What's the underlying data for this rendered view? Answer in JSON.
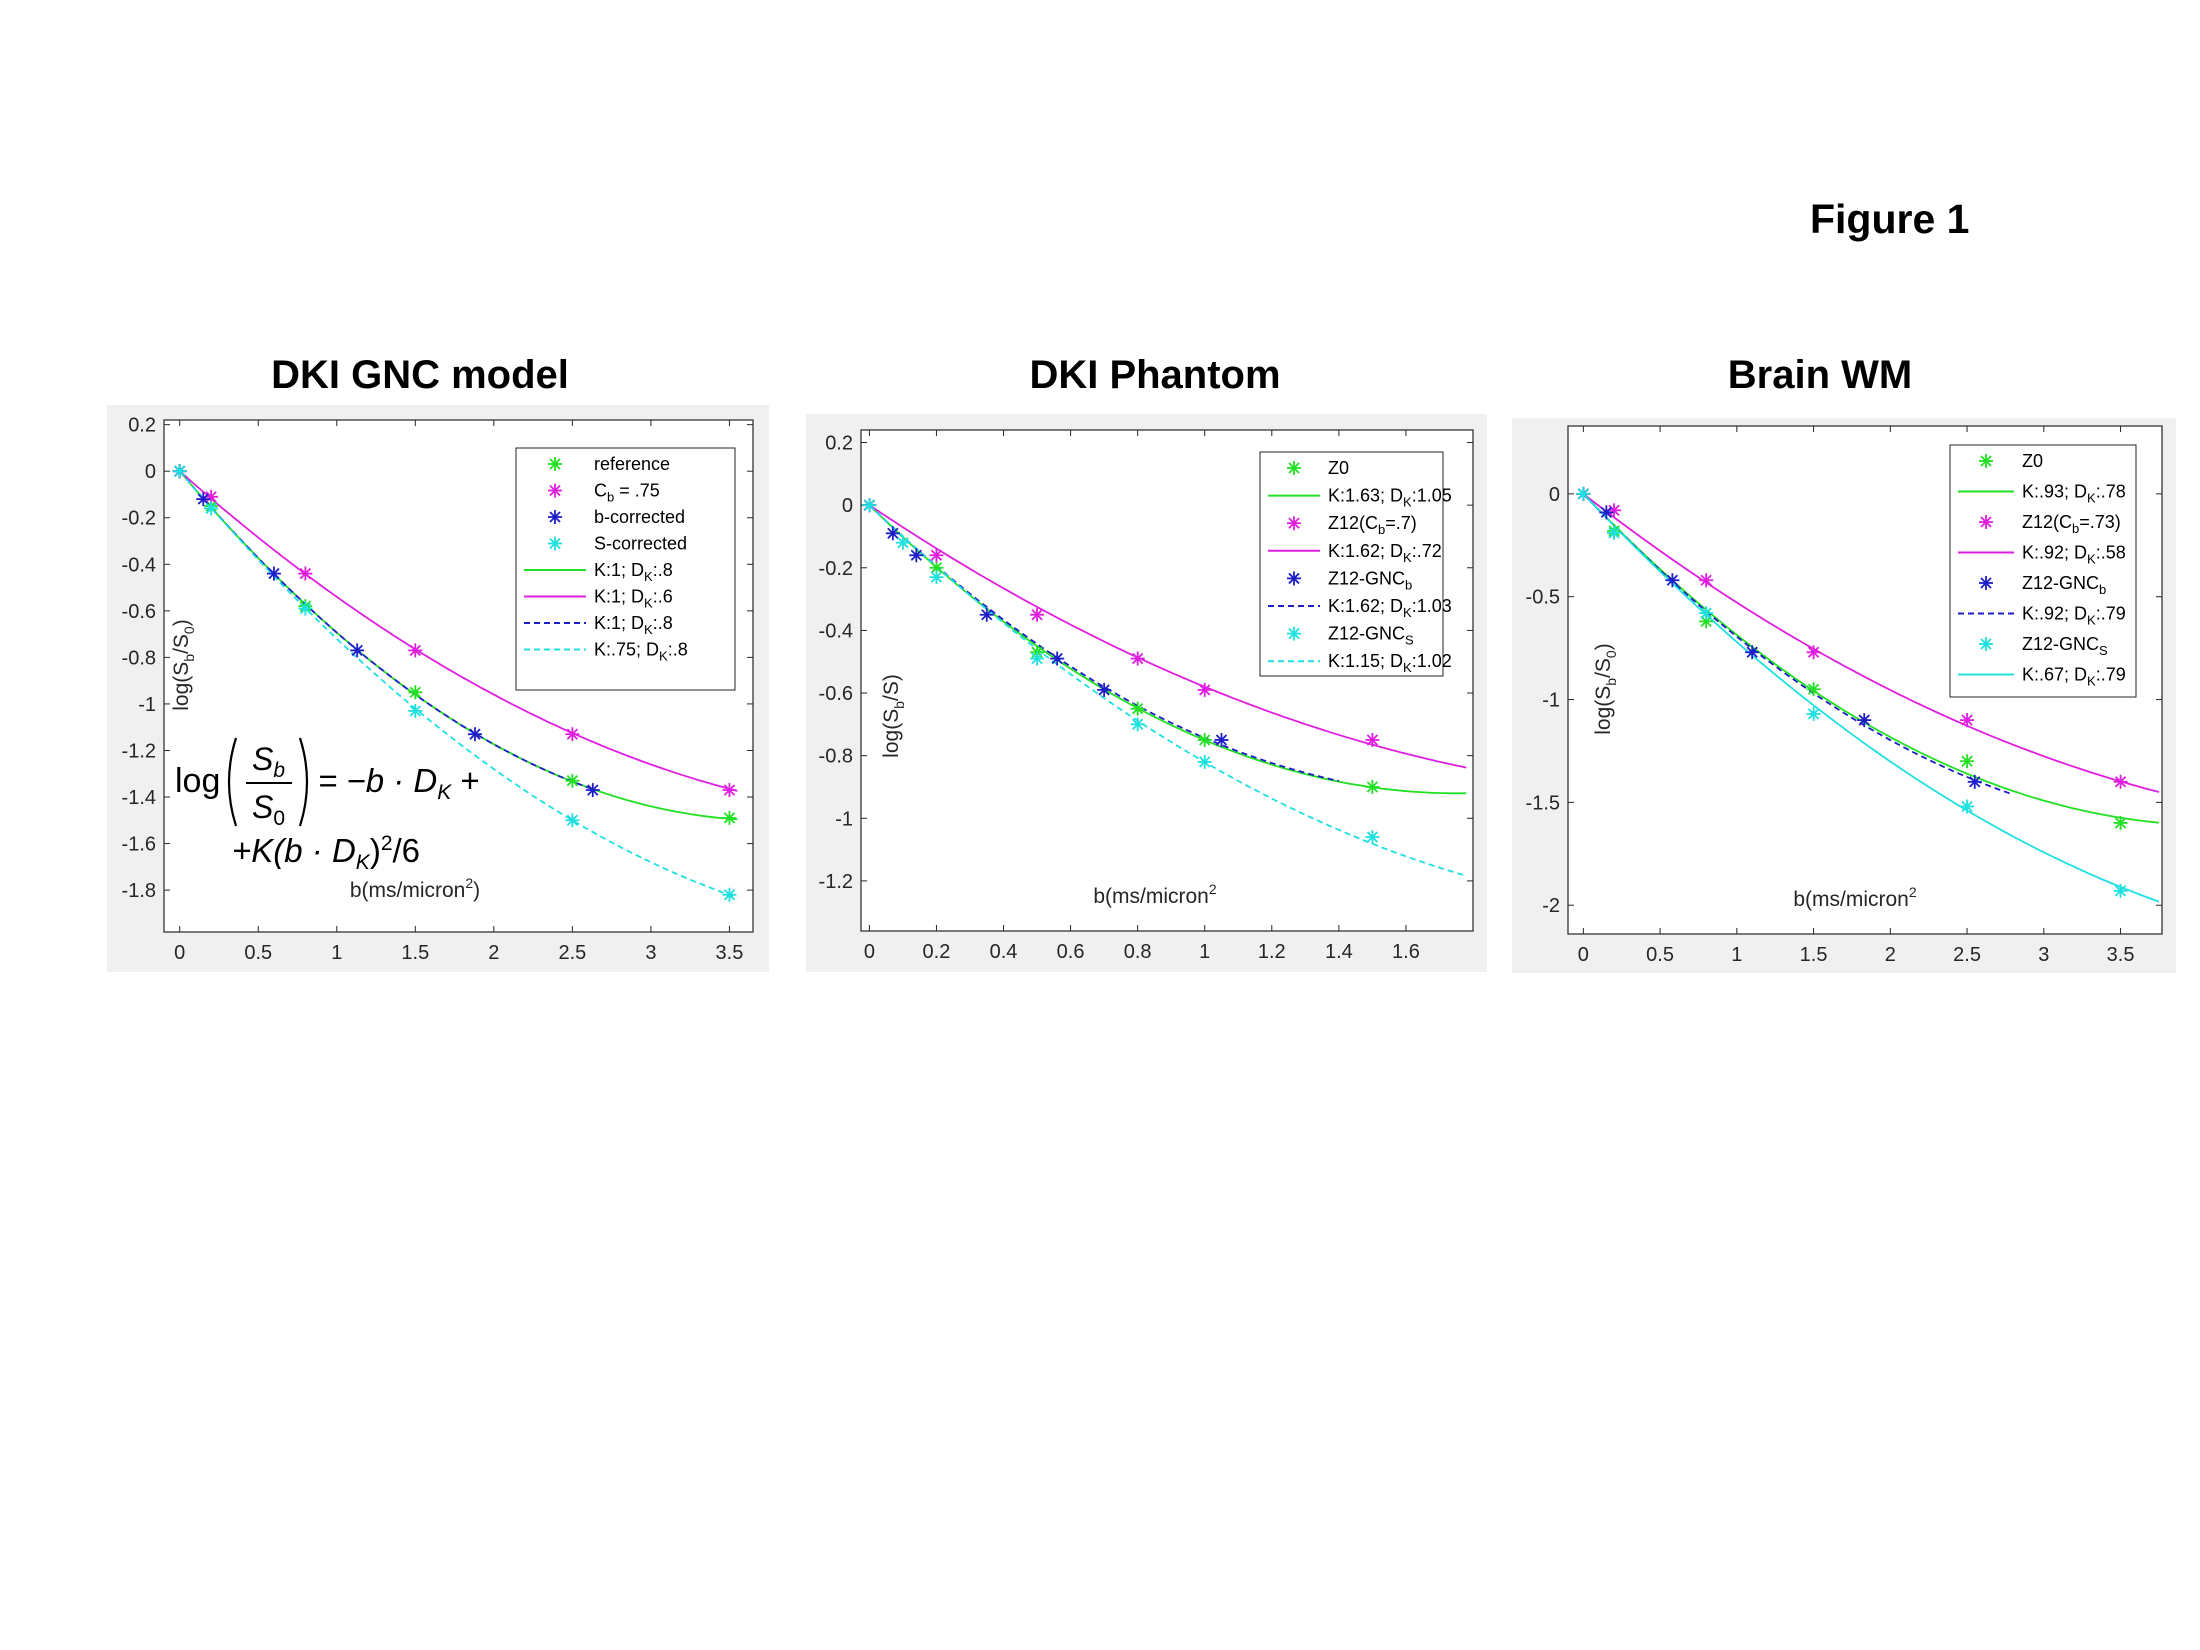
{
  "figure_label": "Figure 1",
  "colors": {
    "reference": "#22e022",
    "cb": "#e01ee0",
    "bcorr": "#1e1ec8",
    "scorr": "#1ee0e0"
  },
  "formula": {
    "line1": {
      "lhs": "log",
      "num": "S",
      "num_sub": "b",
      "den": "S",
      "den_sub": "0",
      "rhs": "= −b · D",
      "rhs_sub": "K",
      "rhs_tail": " +"
    },
    "line2": {
      "pre": "+K(b · D",
      "sub": "K",
      "post": ")",
      "sup": "2",
      "tail": "/6"
    }
  },
  "chart_data": [
    {
      "type": "line",
      "title": "DKI GNC model",
      "xlabel": "b(ms/micron",
      "xlabel_sup": "2",
      "xlabel_tail": ")",
      "ylabel": "log(S",
      "ylabel_sub1": "b",
      "ylabel_mid": "/S",
      "ylabel_sub2": "0",
      "ylabel_tail": ")",
      "xlim": [
        -0.1,
        3.65
      ],
      "ylim": [
        -1.98,
        0.22
      ],
      "xticks": [
        0,
        0.5,
        1,
        1.5,
        2,
        2.5,
        3,
        3.5
      ],
      "xtick_labels": [
        "0",
        "0.5",
        "1",
        "1.5",
        "2",
        "2.5",
        "3",
        "3.5"
      ],
      "yticks": [
        0.2,
        0,
        -0.2,
        -0.4,
        -0.6,
        -0.8,
        -1,
        -1.2,
        -1.4,
        -1.6,
        -1.8
      ],
      "ytick_labels": [
        "0.2",
        "0",
        "-0.2",
        "-0.4",
        "-0.6",
        "-0.8",
        "-1",
        "-1.2",
        "-1.4",
        "-1.6",
        "-1.8"
      ],
      "scatter": [
        {
          "name": "reference",
          "color": "#22e022",
          "points": [
            [
              0,
              0
            ],
            [
              0.2,
              -0.15
            ],
            [
              0.8,
              -0.58
            ],
            [
              1.5,
              -0.95
            ],
            [
              2.5,
              -1.33
            ],
            [
              3.5,
              -1.49
            ]
          ]
        },
        {
          "name": "Cb = .75",
          "color": "#e01ee0",
          "points": [
            [
              0,
              0
            ],
            [
              0.2,
              -0.11
            ],
            [
              0.8,
              -0.44
            ],
            [
              1.5,
              -0.77
            ],
            [
              2.5,
              -1.13
            ],
            [
              3.5,
              -1.37
            ]
          ]
        },
        {
          "name": "b-corrected",
          "color": "#1e1ec8",
          "points": [
            [
              0,
              0
            ],
            [
              0.15,
              -0.12
            ],
            [
              0.6,
              -0.44
            ],
            [
              1.13,
              -0.77
            ],
            [
              1.88,
              -1.13
            ],
            [
              2.63,
              -1.37
            ]
          ]
        },
        {
          "name": "S-corrected",
          "color": "#1ee0e0",
          "points": [
            [
              0,
              0
            ],
            [
              0.2,
              -0.16
            ],
            [
              0.8,
              -0.59
            ],
            [
              1.5,
              -1.03
            ],
            [
              2.5,
              -1.5
            ],
            [
              3.5,
              -1.82
            ]
          ]
        }
      ],
      "curves": [
        {
          "name": "K:1; DK:.8",
          "color": "#22e022",
          "dash": false,
          "K": 1,
          "D": 0.8,
          "xmax": 3.55
        },
        {
          "name": "K:1; DK:.6",
          "color": "#e01ee0",
          "dash": false,
          "K": 1,
          "D": 0.6,
          "xmax": 3.55
        },
        {
          "name": "K:1; DK:.8",
          "color": "#1e1ec8",
          "dash": true,
          "K": 1,
          "D": 0.8,
          "xmax": 2.63
        },
        {
          "name": "K:.75; DK:.8",
          "color": "#1ee0e0",
          "dash": true,
          "K": 0.75,
          "D": 0.8,
          "xmax": 3.55
        }
      ],
      "legend": [
        {
          "kind": "marker",
          "color": "#22e022",
          "label": "reference"
        },
        {
          "kind": "marker",
          "color": "#e01ee0",
          "label": "C",
          "sub": "b",
          "tail": " = .75"
        },
        {
          "kind": "marker",
          "color": "#1e1ec8",
          "label": "b-corrected"
        },
        {
          "kind": "marker",
          "color": "#1ee0e0",
          "label": "S-corrected"
        },
        {
          "kind": "solid",
          "color": "#22e022",
          "label": "K:1; D",
          "sub": "K",
          "tail": ":.8"
        },
        {
          "kind": "solid",
          "color": "#e01ee0",
          "label": "K:1; D",
          "sub": "K",
          "tail": ":.6"
        },
        {
          "kind": "dash",
          "color": "#1e1ec8",
          "label": "K:1; D",
          "sub": "K",
          "tail": ":.8"
        },
        {
          "kind": "dash",
          "color": "#1ee0e0",
          "label": "K:.75; D",
          "sub": "K",
          "tail": ":.8"
        }
      ]
    },
    {
      "type": "line",
      "title": "DKI Phantom",
      "xlabel": "b(ms/micron",
      "xlabel_sup": "2",
      "xlabel_tail": "",
      "ylabel": "log(S",
      "ylabel_sub1": "b",
      "ylabel_mid": "/S",
      "ylabel_sub2": "",
      "ylabel_tail": ")",
      "xlim": [
        -0.025,
        1.8
      ],
      "ylim": [
        -1.36,
        0.24
      ],
      "xticks": [
        0,
        0.2,
        0.4,
        0.6,
        0.8,
        1,
        1.2,
        1.4,
        1.6
      ],
      "xtick_labels": [
        "0",
        "0.2",
        "0.4",
        "0.6",
        "0.8",
        "1",
        "1.2",
        "1.4",
        "1.6"
      ],
      "yticks": [
        0.2,
        0,
        -0.2,
        -0.4,
        -0.6,
        -0.8,
        -1,
        -1.2
      ],
      "ytick_labels": [
        "0.2",
        "0",
        "-0.2",
        "-0.4",
        "-0.6",
        "-0.8",
        "-1",
        "-1.2"
      ],
      "scatter": [
        {
          "name": "Z0",
          "color": "#22e022",
          "points": [
            [
              0,
              0
            ],
            [
              0.2,
              -0.2
            ],
            [
              0.5,
              -0.47
            ],
            [
              0.8,
              -0.65
            ],
            [
              1,
              -0.75
            ],
            [
              1.5,
              -0.9
            ]
          ]
        },
        {
          "name": "Z12(Cb=.7)",
          "color": "#e01ee0",
          "points": [
            [
              0,
              0
            ],
            [
              0.2,
              -0.16
            ],
            [
              0.5,
              -0.35
            ],
            [
              0.8,
              -0.49
            ],
            [
              1,
              -0.59
            ],
            [
              1.5,
              -0.75
            ]
          ]
        },
        {
          "name": "Z12-GNCb",
          "color": "#1e1ec8",
          "points": [
            [
              0,
              0
            ],
            [
              0.07,
              -0.09
            ],
            [
              0.14,
              -0.16
            ],
            [
              0.35,
              -0.35
            ],
            [
              0.56,
              -0.49
            ],
            [
              0.7,
              -0.59
            ],
            [
              1.05,
              -0.75
            ]
          ]
        },
        {
          "name": "Z12-GNCS",
          "color": "#1ee0e0",
          "points": [
            [
              0,
              0
            ],
            [
              0.1,
              -0.12
            ],
            [
              0.2,
              -0.23
            ],
            [
              0.5,
              -0.49
            ],
            [
              0.8,
              -0.7
            ],
            [
              1,
              -0.82
            ],
            [
              1.5,
              -1.06
            ]
          ]
        }
      ],
      "curves": [
        {
          "name": "K:1.63; DK:1.05",
          "color": "#22e022",
          "dash": false,
          "K": 1.63,
          "D": 1.05,
          "xmax": 1.78
        },
        {
          "name": "K:1.62; DK:.72",
          "color": "#e01ee0",
          "dash": false,
          "K": 1.62,
          "D": 0.72,
          "xmax": 1.78
        },
        {
          "name": "K:1.62; DK:1.03",
          "color": "#1e1ec8",
          "dash": true,
          "K": 1.62,
          "D": 1.03,
          "xmax": 1.4
        },
        {
          "name": "K:1.15; DK:1.02",
          "color": "#1ee0e0",
          "dash": true,
          "K": 1.15,
          "D": 1.02,
          "xmax": 1.78
        }
      ],
      "legend": [
        {
          "kind": "marker",
          "color": "#22e022",
          "label": "Z0"
        },
        {
          "kind": "solid",
          "color": "#22e022",
          "label": "K:1.63; D",
          "sub": "K",
          "tail": ":1.05"
        },
        {
          "kind": "marker",
          "color": "#e01ee0",
          "label": "Z12(C",
          "sub": "b",
          "tail": "=.7)"
        },
        {
          "kind": "solid",
          "color": "#e01ee0",
          "label": "K:1.62; D",
          "sub": "K",
          "tail": ":.72"
        },
        {
          "kind": "marker",
          "color": "#1e1ec8",
          "label": "Z12-GNC",
          "sub": "b",
          "tail": ""
        },
        {
          "kind": "dash",
          "color": "#1e1ec8",
          "label": "K:1.62; D",
          "sub": "K",
          "tail": ":1.03"
        },
        {
          "kind": "marker",
          "color": "#1ee0e0",
          "label": "Z12-GNC",
          "sub": "S",
          "tail": ""
        },
        {
          "kind": "dash",
          "color": "#1ee0e0",
          "label": "K:1.15; D",
          "sub": "K",
          "tail": ":1.02"
        }
      ]
    },
    {
      "type": "line",
      "title": "Brain WM",
      "xlabel": "b(ms/micron",
      "xlabel_sup": "2",
      "xlabel_tail": "",
      "ylabel": "log(S",
      "ylabel_sub1": "b",
      "ylabel_mid": "/S",
      "ylabel_sub2": "0",
      "ylabel_tail": ")",
      "xlim": [
        -0.1,
        3.77
      ],
      "ylim": [
        -2.14,
        0.33
      ],
      "xticks": [
        0,
        0.5,
        1,
        1.5,
        2,
        2.5,
        3,
        3.5
      ],
      "xtick_labels": [
        "0",
        "0.5",
        "1",
        "1.5",
        "2",
        "2.5",
        "3",
        "3.5"
      ],
      "yticks": [
        0,
        -0.5,
        -1,
        -1.5,
        -2
      ],
      "ytick_labels": [
        "0",
        "-0.5",
        "-1",
        "-1.5",
        "-2"
      ],
      "scatter": [
        {
          "name": "Z0",
          "color": "#22e022",
          "points": [
            [
              0,
              0
            ],
            [
              0.2,
              -0.18
            ],
            [
              0.8,
              -0.62
            ],
            [
              1.5,
              -0.95
            ],
            [
              2.5,
              -1.3
            ],
            [
              3.5,
              -1.6
            ]
          ]
        },
        {
          "name": "Z12(Cb=.73)",
          "color": "#e01ee0",
          "points": [
            [
              0,
              0
            ],
            [
              0.2,
              -0.08
            ],
            [
              0.8,
              -0.42
            ],
            [
              1.5,
              -0.77
            ],
            [
              2.5,
              -1.1
            ],
            [
              3.5,
              -1.4
            ]
          ]
        },
        {
          "name": "Z12-GNCb",
          "color": "#1e1ec8",
          "points": [
            [
              0,
              0
            ],
            [
              0.15,
              -0.09
            ],
            [
              0.58,
              -0.42
            ],
            [
              1.1,
              -0.77
            ],
            [
              1.83,
              -1.1
            ],
            [
              2.55,
              -1.4
            ]
          ]
        },
        {
          "name": "Z12-GNCS",
          "color": "#1ee0e0",
          "points": [
            [
              0,
              0
            ],
            [
              0.2,
              -0.19
            ],
            [
              0.8,
              -0.58
            ],
            [
              1.5,
              -1.07
            ],
            [
              2.5,
              -1.52
            ],
            [
              3.5,
              -1.93
            ]
          ]
        }
      ],
      "curves": [
        {
          "name": "K:.93; DK:.78",
          "color": "#22e022",
          "dash": false,
          "K": 0.93,
          "D": 0.78,
          "xmax": 3.75
        },
        {
          "name": "K:.92; DK:.58",
          "color": "#e01ee0",
          "dash": false,
          "K": 0.92,
          "D": 0.58,
          "xmax": 3.75
        },
        {
          "name": "K:.92; DK:.79",
          "color": "#1e1ec8",
          "dash": true,
          "K": 0.92,
          "D": 0.79,
          "xmax": 2.8
        },
        {
          "name": "K:.67; DK:.79",
          "color": "#1ee0e0",
          "dash": false,
          "K": 0.67,
          "D": 0.79,
          "xmax": 3.75
        }
      ],
      "legend": [
        {
          "kind": "marker",
          "color": "#22e022",
          "label": "Z0"
        },
        {
          "kind": "solid",
          "color": "#22e022",
          "label": "K:.93; D",
          "sub": "K",
          "tail": ":.78"
        },
        {
          "kind": "marker",
          "color": "#e01ee0",
          "label": "Z12(C",
          "sub": "b",
          "tail": "=.73)"
        },
        {
          "kind": "solid",
          "color": "#e01ee0",
          "label": "K:.92; D",
          "sub": "K",
          "tail": ":.58"
        },
        {
          "kind": "marker",
          "color": "#1e1ec8",
          "label": "Z12-GNC",
          "sub": "b",
          "tail": ""
        },
        {
          "kind": "dash",
          "color": "#1e1ec8",
          "label": "K:.92; D",
          "sub": "K",
          "tail": ":.79"
        },
        {
          "kind": "marker",
          "color": "#1ee0e0",
          "label": "Z12-GNC",
          "sub": "S",
          "tail": ""
        },
        {
          "kind": "solid",
          "color": "#1ee0e0",
          "label": "K:.67; D",
          "sub": "K",
          "tail": ":.79"
        }
      ]
    }
  ]
}
